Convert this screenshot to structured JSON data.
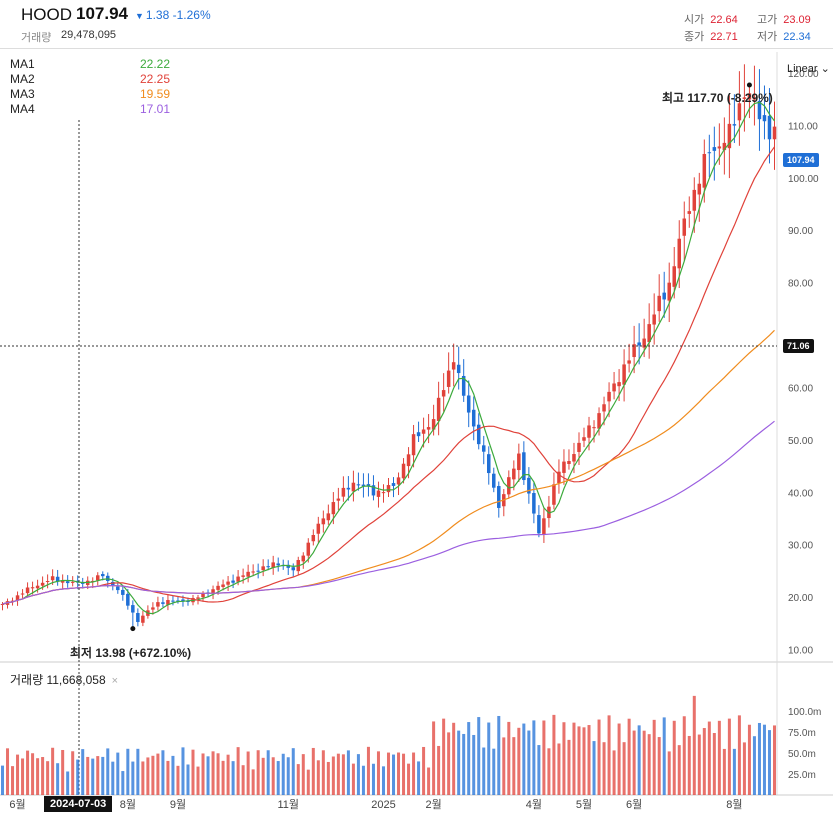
{
  "header": {
    "ticker": "HOOD",
    "price": "107.94",
    "change_abs": "1.38",
    "change_pct": "-1.26%",
    "volume_label": "거래량",
    "volume_value": "29,478,095",
    "ohlc": [
      {
        "key": "시가",
        "value": "22.64"
      },
      {
        "key": "고가",
        "value": "23.09"
      },
      {
        "key": "종가",
        "value": "22.71"
      },
      {
        "key": "저가",
        "value": "22.34"
      }
    ]
  },
  "ma_legend": [
    {
      "name": "MA1",
      "value": "22.22",
      "color": "#3caa3c"
    },
    {
      "name": "MA2",
      "value": "22.25",
      "color": "#e0423a"
    },
    {
      "name": "MA3",
      "value": "19.59",
      "color": "#f08c1e"
    },
    {
      "name": "MA4",
      "value": "17.01",
      "color": "#9b5fe0"
    }
  ],
  "scale_mode": "Linear",
  "volume_panel": {
    "title": "거래량 11,668,058",
    "close": "×"
  },
  "annotations": {
    "high": "최고 117.70 (-8.29%)",
    "low": "최저 13.98 (+672.10%)",
    "last_price_tag": "107.94",
    "crosshair_price_tag": "71.06",
    "crosshair_date_tag": "2024-07-03"
  },
  "colors": {
    "up": "#e0423a",
    "down": "#1f6fd6",
    "accent": "#1f6fd6"
  },
  "chart_data": {
    "type": "candlestick",
    "price_axis_ticks": [
      120,
      110,
      100,
      90,
      80,
      60,
      50,
      40,
      30,
      20,
      10
    ],
    "price_axis_labels": [
      "120.00",
      "110.00",
      "100.00",
      "90.00",
      "80.00",
      "60.00",
      "50.00",
      "40.00",
      "30.00",
      "20.00",
      "10.00"
    ],
    "ylim": [
      8,
      124
    ],
    "volume_axis_ticks": [
      100,
      75,
      50,
      25
    ],
    "volume_axis_labels": [
      "100.0m",
      "75.0m",
      "50.0m",
      "25.0m"
    ],
    "x_labels": [
      "6월",
      "8월",
      "9월",
      "11월",
      "2025",
      "2월",
      "4월",
      "5월",
      "6월",
      "8월"
    ],
    "x_label_index": [
      3,
      25,
      35,
      57,
      76,
      86,
      106,
      116,
      126,
      146
    ],
    "n_bars": 155,
    "close_anchors": [
      [
        0,
        18.5
      ],
      [
        6,
        22.0
      ],
      [
        10,
        23.5
      ],
      [
        15,
        22.5
      ],
      [
        20,
        24.0
      ],
      [
        23,
        21.5
      ],
      [
        27,
        15.5
      ],
      [
        31,
        19.0
      ],
      [
        38,
        19.5
      ],
      [
        42,
        21.5
      ],
      [
        50,
        25.0
      ],
      [
        55,
        26.5
      ],
      [
        58,
        25.0
      ],
      [
        62,
        32.0
      ],
      [
        66,
        38.0
      ],
      [
        70,
        42.0
      ],
      [
        74,
        40.0
      ],
      [
        78,
        41.0
      ],
      [
        82,
        50.0
      ],
      [
        86,
        54.0
      ],
      [
        90,
        66.0
      ],
      [
        92,
        58.0
      ],
      [
        95,
        50.0
      ],
      [
        99,
        37.5
      ],
      [
        103,
        47.0
      ],
      [
        107,
        32.0
      ],
      [
        111,
        44.0
      ],
      [
        115,
        49.0
      ],
      [
        119,
        55.0
      ],
      [
        124,
        64.0
      ],
      [
        128,
        70.0
      ],
      [
        133,
        80.0
      ],
      [
        137,
        95.0
      ],
      [
        141,
        105.0
      ],
      [
        145,
        108.0
      ],
      [
        148,
        117.0
      ],
      [
        151,
        112.0
      ],
      [
        154,
        107.9
      ]
    ],
    "high_point": {
      "index": 149,
      "value": 117.7
    },
    "low_point": {
      "index": 26,
      "value": 13.98
    },
    "series": [
      {
        "name": "MA1",
        "period": 5,
        "color": "#3caa3c"
      },
      {
        "name": "MA2",
        "period": 20,
        "color": "#e0423a"
      },
      {
        "name": "MA3",
        "period": 60,
        "color": "#f08c1e"
      },
      {
        "name": "MA4",
        "period": 120,
        "color": "#9b5fe0"
      }
    ]
  }
}
